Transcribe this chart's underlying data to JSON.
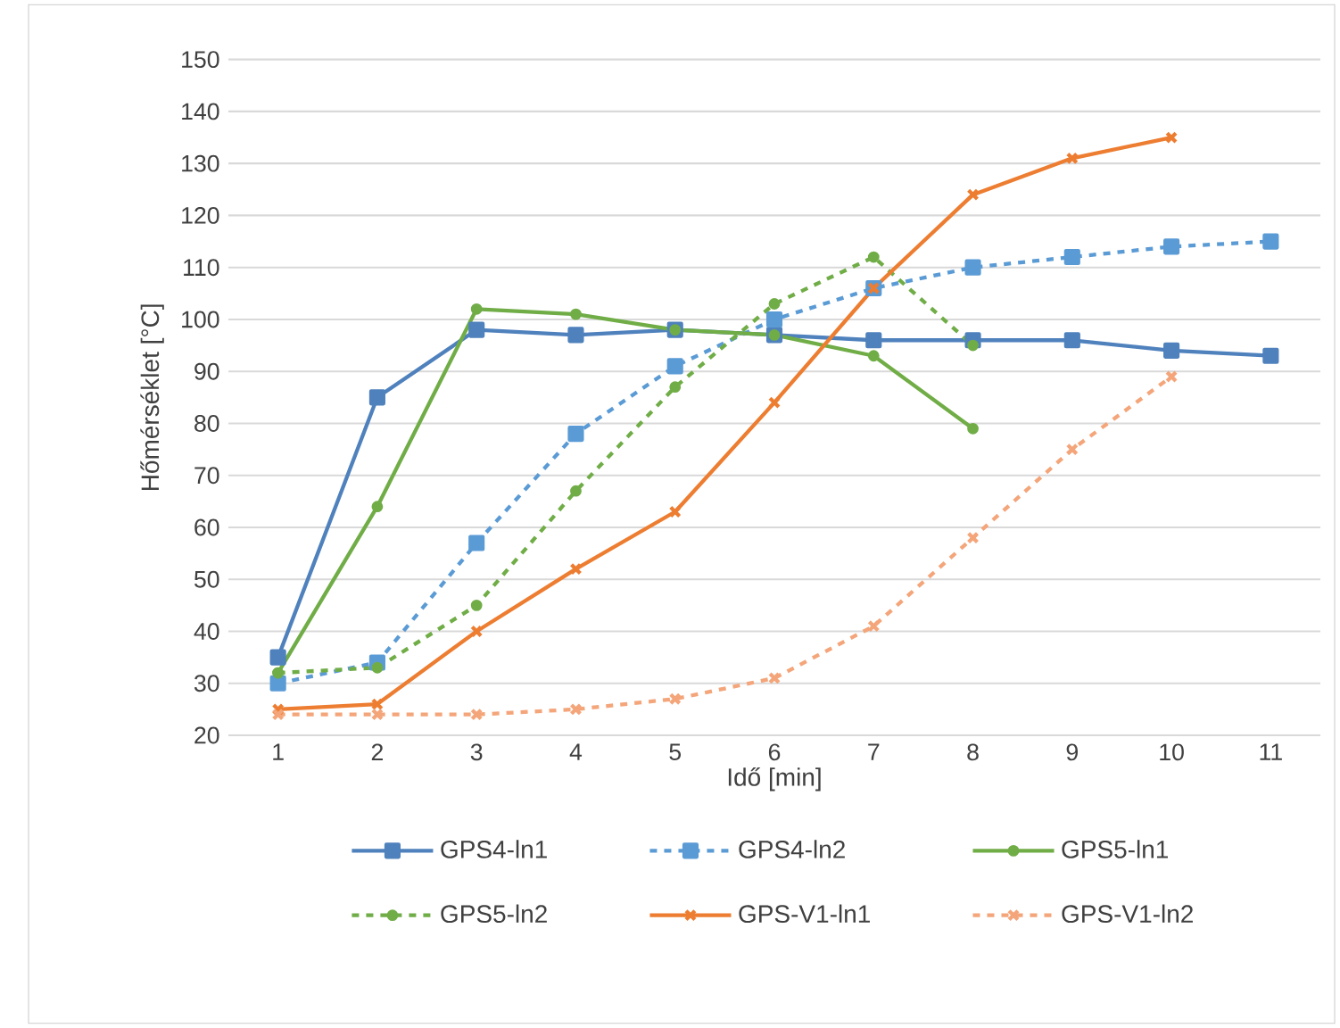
{
  "chart_data": {
    "type": "line",
    "xlabel": "Idő [min]",
    "ylabel": "Hőmérséklet [°C]",
    "categories": [
      "1",
      "2",
      "3",
      "4",
      "5",
      "6",
      "7",
      "8",
      "9",
      "10",
      "11"
    ],
    "ylim": [
      20,
      150
    ],
    "yticks": [
      20,
      30,
      40,
      50,
      60,
      70,
      80,
      90,
      100,
      110,
      120,
      130,
      140,
      150
    ],
    "grid": "y",
    "legend": "bottom",
    "series": [
      {
        "name": "GPS4-ln1",
        "color": "#4f81bd",
        "marker": "square",
        "line_style": "solid",
        "values": [
          35,
          85,
          98,
          97,
          98,
          97,
          96,
          96,
          96,
          94,
          93
        ]
      },
      {
        "name": "GPS4-ln2",
        "color": "#5b9bd5",
        "marker": "square",
        "line_style": "dashed",
        "values": [
          30,
          34,
          57,
          78,
          91,
          100,
          106,
          110,
          112,
          114,
          115
        ]
      },
      {
        "name": "GPS5-ln1",
        "color": "#70ad47",
        "marker": "circle",
        "line_style": "solid",
        "values": [
          32,
          64,
          102,
          101,
          98,
          97,
          93,
          79,
          null,
          null,
          null
        ]
      },
      {
        "name": "GPS5-ln2",
        "color": "#70ad47",
        "marker": "circle",
        "line_style": "dashed",
        "values": [
          32,
          33,
          45,
          67,
          87,
          103,
          112,
          95,
          null,
          null,
          null
        ]
      },
      {
        "name": "GPS-V1-ln1",
        "color": "#ed7d31",
        "marker": "cross",
        "line_style": "solid",
        "values": [
          25,
          26,
          40,
          52,
          63,
          84,
          106,
          124,
          131,
          135,
          null
        ]
      },
      {
        "name": "GPS-V1-ln2",
        "color": "#f4a57a",
        "marker": "cross",
        "line_style": "dashed",
        "values": [
          24,
          24,
          24,
          25,
          27,
          31,
          41,
          58,
          75,
          89,
          null
        ]
      }
    ]
  }
}
